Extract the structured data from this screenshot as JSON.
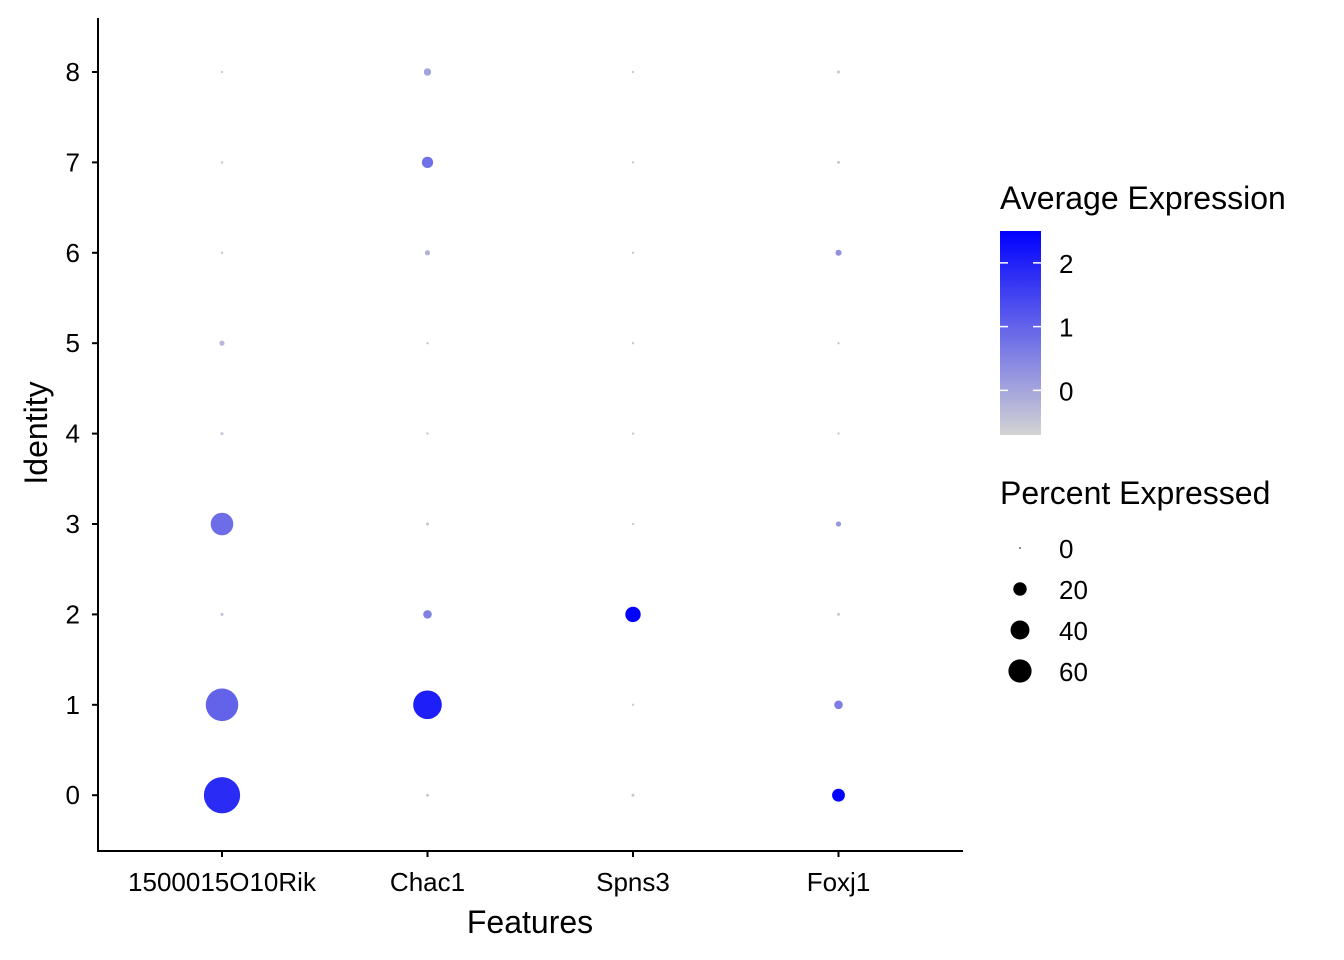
{
  "chart_data": {
    "type": "dotplot",
    "title": "",
    "xlabel": "Features",
    "ylabel": "Identity",
    "features": [
      "1500015O10Rik",
      "Chac1",
      "Spns3",
      "Foxj1"
    ],
    "identities": [
      "0",
      "1",
      "2",
      "3",
      "4",
      "5",
      "6",
      "7",
      "8"
    ],
    "grid": false,
    "color_scale": {
      "title": "Average Expression",
      "low_color": "#d3d3d3",
      "high_color": "#0000ff",
      "range": [
        -0.7,
        2.5
      ],
      "ticks": [
        0,
        1,
        2
      ],
      "tick_labels": [
        "0",
        "1",
        "2"
      ]
    },
    "size_scale": {
      "title": "Percent Expressed",
      "range": [
        0,
        75
      ],
      "ticks": [
        0,
        20,
        40,
        60
      ],
      "tick_labels": [
        "0",
        "20",
        "40",
        "60"
      ]
    },
    "legend_placement": "right",
    "points": [
      {
        "feature": "1500015O10Rik",
        "identity": "0",
        "pct": 72,
        "avg": 1.85
      },
      {
        "feature": "1500015O10Rik",
        "identity": "1",
        "pct": 58,
        "avg": 1.0
      },
      {
        "feature": "1500015O10Rik",
        "identity": "2",
        "pct": 0.5,
        "avg": -0.4
      },
      {
        "feature": "1500015O10Rik",
        "identity": "3",
        "pct": 28,
        "avg": 0.85
      },
      {
        "feature": "1500015O10Rik",
        "identity": "4",
        "pct": 0.5,
        "avg": -0.5
      },
      {
        "feature": "1500015O10Rik",
        "identity": "5",
        "pct": 1.5,
        "avg": -0.3
      },
      {
        "feature": "1500015O10Rik",
        "identity": "6",
        "pct": 0.3,
        "avg": -0.5
      },
      {
        "feature": "1500015O10Rik",
        "identity": "7",
        "pct": 0.3,
        "avg": -0.5
      },
      {
        "feature": "1500015O10Rik",
        "identity": "8",
        "pct": 0.3,
        "avg": -0.5
      },
      {
        "feature": "Chac1",
        "identity": "0",
        "pct": 0.5,
        "avg": -0.5
      },
      {
        "feature": "Chac1",
        "identity": "1",
        "pct": 45,
        "avg": 2.05
      },
      {
        "feature": "Chac1",
        "identity": "2",
        "pct": 4,
        "avg": 0.55
      },
      {
        "feature": "Chac1",
        "identity": "3",
        "pct": 0.5,
        "avg": -0.5
      },
      {
        "feature": "Chac1",
        "identity": "4",
        "pct": 0.3,
        "avg": -0.5
      },
      {
        "feature": "Chac1",
        "identity": "5",
        "pct": 0.3,
        "avg": -0.5
      },
      {
        "feature": "Chac1",
        "identity": "6",
        "pct": 1.5,
        "avg": -0.2
      },
      {
        "feature": "Chac1",
        "identity": "7",
        "pct": 7,
        "avg": 0.8
      },
      {
        "feature": "Chac1",
        "identity": "8",
        "pct": 3,
        "avg": 0.0
      },
      {
        "feature": "Spns3",
        "identity": "0",
        "pct": 0.5,
        "avg": -0.5
      },
      {
        "feature": "Spns3",
        "identity": "1",
        "pct": 0.3,
        "avg": -0.5
      },
      {
        "feature": "Spns3",
        "identity": "2",
        "pct": 13,
        "avg": 2.5
      },
      {
        "feature": "Spns3",
        "identity": "3",
        "pct": 0.3,
        "avg": -0.5
      },
      {
        "feature": "Spns3",
        "identity": "4",
        "pct": 0.3,
        "avg": -0.5
      },
      {
        "feature": "Spns3",
        "identity": "5",
        "pct": 0.3,
        "avg": -0.5
      },
      {
        "feature": "Spns3",
        "identity": "6",
        "pct": 0.3,
        "avg": -0.5
      },
      {
        "feature": "Spns3",
        "identity": "7",
        "pct": 0.3,
        "avg": -0.5
      },
      {
        "feature": "Spns3",
        "identity": "8",
        "pct": 0.3,
        "avg": -0.5
      },
      {
        "feature": "Foxj1",
        "identity": "0",
        "pct": 9,
        "avg": 2.5
      },
      {
        "feature": "Foxj1",
        "identity": "1",
        "pct": 4,
        "avg": 0.6
      },
      {
        "feature": "Foxj1",
        "identity": "2",
        "pct": 0.5,
        "avg": -0.5
      },
      {
        "feature": "Foxj1",
        "identity": "3",
        "pct": 1.5,
        "avg": 0.2
      },
      {
        "feature": "Foxj1",
        "identity": "4",
        "pct": 0.3,
        "avg": -0.5
      },
      {
        "feature": "Foxj1",
        "identity": "5",
        "pct": 0.3,
        "avg": -0.5
      },
      {
        "feature": "Foxj1",
        "identity": "6",
        "pct": 2,
        "avg": 0.3
      },
      {
        "feature": "Foxj1",
        "identity": "7",
        "pct": 0.5,
        "avg": -0.5
      },
      {
        "feature": "Foxj1",
        "identity": "8",
        "pct": 0.5,
        "avg": -0.5
      }
    ]
  }
}
